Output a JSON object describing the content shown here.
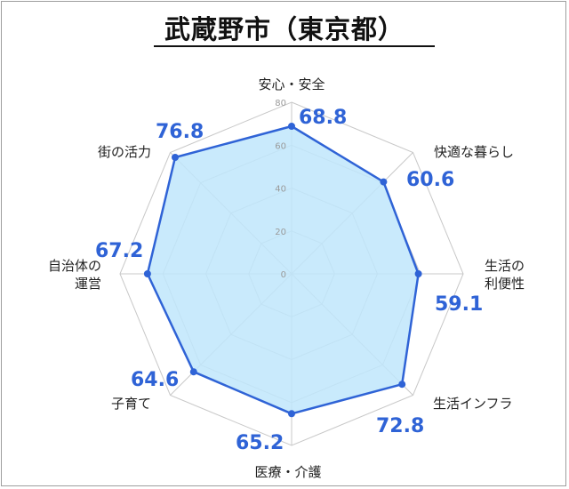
{
  "chart_data": {
    "type": "radar",
    "title": "武蔵野市（東京都）",
    "axes": [
      {
        "label": [
          "安心・安全"
        ],
        "value": 68.8,
        "value_text": "68.8"
      },
      {
        "label": [
          "快適な暮らし"
        ],
        "value": 60.6,
        "value_text": "60.6"
      },
      {
        "label": [
          "生活の",
          "利便性"
        ],
        "value": 59.1,
        "value_text": "59.1"
      },
      {
        "label": [
          "生活インフラ"
        ],
        "value": 72.8,
        "value_text": "72.8"
      },
      {
        "label": [
          "医療・介護"
        ],
        "value": 65.2,
        "value_text": "65.2"
      },
      {
        "label": [
          "子育て"
        ],
        "value": 64.6,
        "value_text": "64.6"
      },
      {
        "label": [
          "自治体の",
          "運営"
        ],
        "value": 67.2,
        "value_text": "67.2"
      },
      {
        "label": [
          "街の活力"
        ],
        "value": 76.8,
        "value_text": "76.8"
      }
    ],
    "ticks": [
      "0",
      "20",
      "40",
      "60",
      "80"
    ],
    "range": [
      0,
      80
    ],
    "series_color": "#2f63d6",
    "fill_color": "#bfe6fb",
    "grid_color": "#c8c8c8"
  }
}
